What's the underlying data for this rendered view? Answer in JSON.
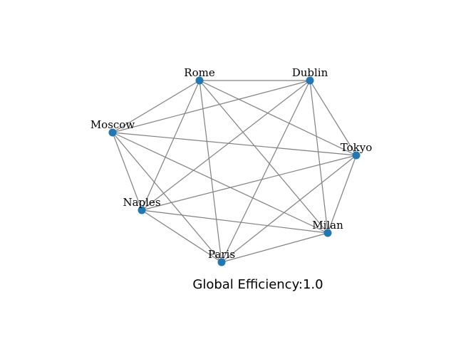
{
  "graph": {
    "nodes": [
      {
        "id": "Rome",
        "label": "Rome"
      },
      {
        "id": "Dublin",
        "label": "Dublin"
      },
      {
        "id": "Moscow",
        "label": "Moscow"
      },
      {
        "id": "Tokyo",
        "label": "Tokyo"
      },
      {
        "id": "Naples",
        "label": "Naples"
      },
      {
        "id": "Milan",
        "label": "Milan"
      },
      {
        "id": "Paris",
        "label": "Paris"
      }
    ],
    "edges": [
      [
        "Rome",
        "Dublin"
      ],
      [
        "Rome",
        "Moscow"
      ],
      [
        "Rome",
        "Tokyo"
      ],
      [
        "Rome",
        "Naples"
      ],
      [
        "Rome",
        "Milan"
      ],
      [
        "Rome",
        "Paris"
      ],
      [
        "Dublin",
        "Moscow"
      ],
      [
        "Dublin",
        "Tokyo"
      ],
      [
        "Dublin",
        "Naples"
      ],
      [
        "Dublin",
        "Milan"
      ],
      [
        "Dublin",
        "Paris"
      ],
      [
        "Moscow",
        "Tokyo"
      ],
      [
        "Moscow",
        "Naples"
      ],
      [
        "Moscow",
        "Milan"
      ],
      [
        "Moscow",
        "Paris"
      ],
      [
        "Tokyo",
        "Naples"
      ],
      [
        "Tokyo",
        "Milan"
      ],
      [
        "Tokyo",
        "Paris"
      ],
      [
        "Naples",
        "Milan"
      ],
      [
        "Naples",
        "Paris"
      ],
      [
        "Milan",
        "Paris"
      ]
    ],
    "node_color": "#1f77b4",
    "edge_color": "#808080"
  },
  "caption": "Global Efficiency:1.0"
}
